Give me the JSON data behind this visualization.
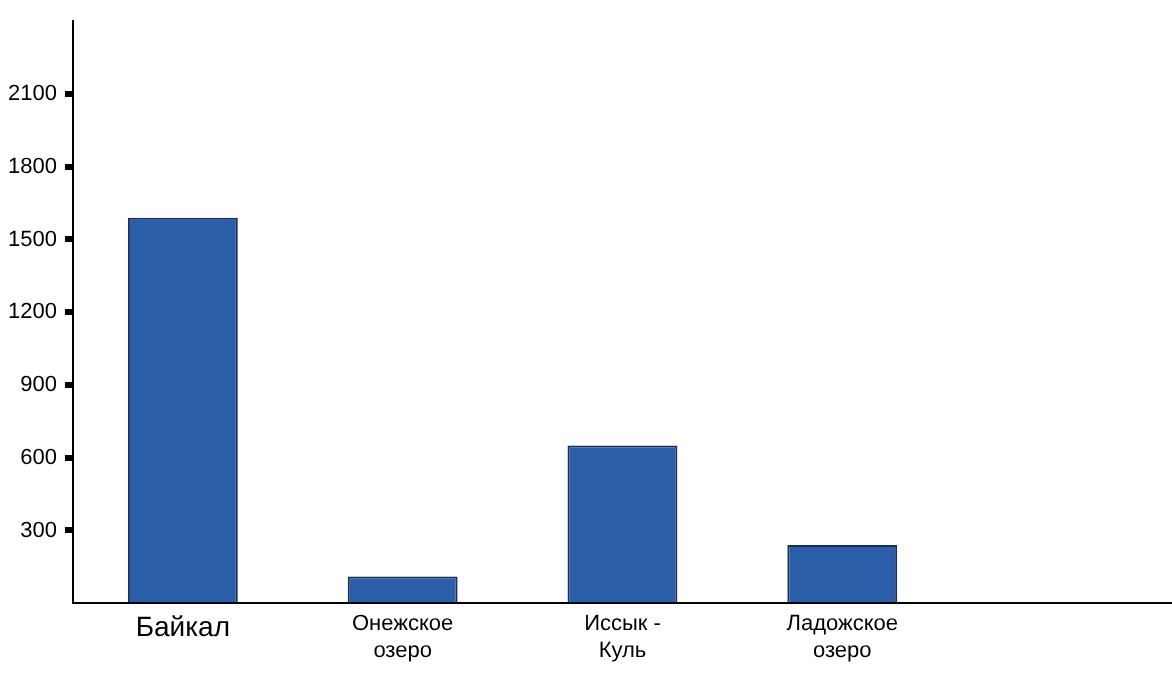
{
  "chart_data": {
    "type": "bar",
    "categories": [
      "Байкал",
      "Онежское озеро",
      "Иссык - Куль",
      "Ладожское озеро",
      null
    ],
    "values": [
      1590,
      110,
      650,
      240,
      null
    ],
    "color": "#2a5ea8",
    "ylim": [
      0,
      2400
    ],
    "yticks": [
      {
        "value": 0,
        "label": null
      },
      300,
      600,
      900,
      1200,
      1500,
      1800,
      2100
    ],
    "grid": false,
    "legend": false
  }
}
